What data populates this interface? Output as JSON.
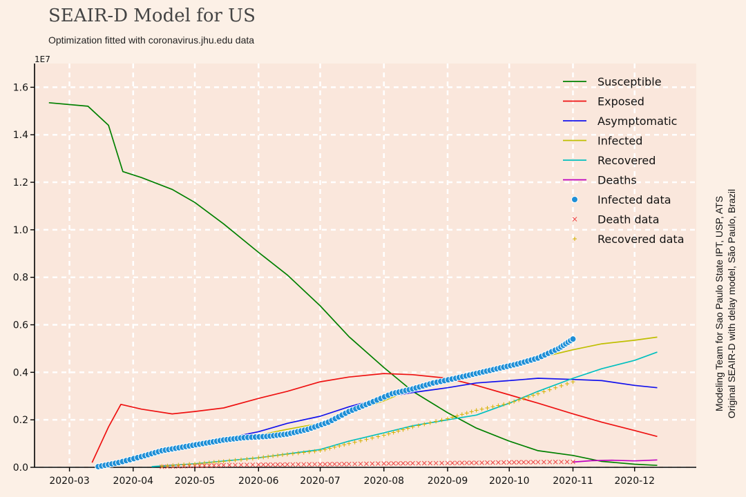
{
  "header": {
    "title": "SEAIR-D Model for US",
    "subtitle": "Optimization fitted with coronavirus.jhu.edu data"
  },
  "side_note": {
    "line1": "Modeling Team for Sao Paulo State IPT, USP, ATS",
    "line2": "Original SEAIR-D with delay model, São Paulo, Brazil"
  },
  "colors": {
    "background": "#fcf0e6",
    "plot_bg": "#fae7dc",
    "grid": "#ffffff",
    "susceptible": "#008000",
    "exposed": "#ee1111",
    "asymptomatic": "#1111ee",
    "infected": "#bfbf00",
    "recovered": "#00bfbf",
    "deaths": "#bf00bf",
    "infected_data": "#1f8fd6",
    "death_data": "#ee4444",
    "recovered_data": "#d4b000"
  },
  "chart_data": {
    "type": "line",
    "title": "SEAIR-D Model for US",
    "subtitle": "Optimization fitted with coronavirus.jhu.edu data",
    "xlabel": "",
    "ylabel": "",
    "y_scale_label": "1E7",
    "ylim": [
      0,
      1.7
    ],
    "xlim": [
      "2020-02-13",
      "2020-12-31"
    ],
    "grid": true,
    "legend_position": "top-right",
    "x_ticks": [
      "2020-03",
      "2020-04",
      "2020-05",
      "2020-06",
      "2020-07",
      "2020-08",
      "2020-09",
      "2020-10",
      "2020-11",
      "2020-12"
    ],
    "x_tick_dates": [
      "2020-03-01",
      "2020-04-01",
      "2020-05-01",
      "2020-06-01",
      "2020-07-01",
      "2020-08-01",
      "2020-09-01",
      "2020-10-01",
      "2020-11-01",
      "2020-12-01"
    ],
    "y_ticks": [
      "0.0",
      "0.2",
      "0.4",
      "0.6",
      "0.8",
      "1.0",
      "1.2",
      "1.4",
      "1.6"
    ],
    "y_tick_values": [
      0,
      0.2,
      0.4,
      0.6,
      0.8,
      1.0,
      1.2,
      1.4,
      1.6
    ],
    "series": [
      {
        "name": "Susceptible",
        "kind": "line",
        "color": "#008000",
        "x": [
          "2020-02-20",
          "2020-03-10",
          "2020-03-20",
          "2020-03-27",
          "2020-04-05",
          "2020-04-20",
          "2020-05-01",
          "2020-05-15",
          "2020-06-01",
          "2020-06-15",
          "2020-07-01",
          "2020-07-15",
          "2020-08-01",
          "2020-08-15",
          "2020-09-01",
          "2020-09-15",
          "2020-10-01",
          "2020-10-15",
          "2020-11-01",
          "2020-11-15",
          "2020-12-01",
          "2020-12-12"
        ],
        "values": [
          1.535,
          1.52,
          1.44,
          1.245,
          1.22,
          1.17,
          1.115,
          1.025,
          0.905,
          0.81,
          0.68,
          0.55,
          0.42,
          0.32,
          0.23,
          0.165,
          0.11,
          0.07,
          0.05,
          0.025,
          0.013,
          0.008
        ]
      },
      {
        "name": "Exposed",
        "kind": "line",
        "color": "#ee1111",
        "x": [
          "2020-03-12",
          "2020-03-20",
          "2020-03-26",
          "2020-04-05",
          "2020-04-20",
          "2020-05-01",
          "2020-05-15",
          "2020-06-01",
          "2020-06-15",
          "2020-07-01",
          "2020-07-15",
          "2020-08-01",
          "2020-08-15",
          "2020-09-01",
          "2020-09-15",
          "2020-10-01",
          "2020-10-15",
          "2020-11-01",
          "2020-11-15",
          "2020-12-01",
          "2020-12-12"
        ],
        "values": [
          0.02,
          0.17,
          0.265,
          0.245,
          0.225,
          0.235,
          0.25,
          0.29,
          0.32,
          0.36,
          0.38,
          0.395,
          0.39,
          0.375,
          0.345,
          0.305,
          0.27,
          0.225,
          0.19,
          0.155,
          0.13
        ]
      },
      {
        "name": "Asymptomatic",
        "kind": "line",
        "color": "#1111ee",
        "x": [
          "2020-03-15",
          "2020-04-01",
          "2020-04-15",
          "2020-05-01",
          "2020-05-15",
          "2020-06-01",
          "2020-06-15",
          "2020-07-01",
          "2020-07-15",
          "2020-08-01",
          "2020-08-15",
          "2020-09-01",
          "2020-09-15",
          "2020-10-01",
          "2020-10-15",
          "2020-11-01",
          "2020-11-15",
          "2020-12-01",
          "2020-12-12"
        ],
        "values": [
          0.005,
          0.03,
          0.06,
          0.095,
          0.12,
          0.15,
          0.185,
          0.215,
          0.255,
          0.295,
          0.315,
          0.335,
          0.355,
          0.365,
          0.375,
          0.37,
          0.365,
          0.345,
          0.335
        ]
      },
      {
        "name": "Infected",
        "kind": "line",
        "color": "#bfbf00",
        "x": [
          "2020-03-15",
          "2020-04-01",
          "2020-04-15",
          "2020-05-01",
          "2020-05-15",
          "2020-06-01",
          "2020-06-15",
          "2020-07-01",
          "2020-07-15",
          "2020-08-01",
          "2020-08-15",
          "2020-09-01",
          "2020-09-15",
          "2020-10-01",
          "2020-10-15",
          "2020-11-01",
          "2020-11-15",
          "2020-12-01",
          "2020-12-12"
        ],
        "values": [
          0.005,
          0.03,
          0.06,
          0.095,
          0.12,
          0.135,
          0.16,
          0.185,
          0.23,
          0.28,
          0.33,
          0.375,
          0.405,
          0.43,
          0.46,
          0.495,
          0.52,
          0.535,
          0.548
        ]
      },
      {
        "name": "Recovered",
        "kind": "line",
        "color": "#00bfbf",
        "x": [
          "2020-04-10",
          "2020-05-01",
          "2020-06-01",
          "2020-07-01",
          "2020-07-15",
          "2020-08-01",
          "2020-08-15",
          "2020-09-01",
          "2020-09-15",
          "2020-10-01",
          "2020-10-15",
          "2020-11-01",
          "2020-11-15",
          "2020-12-01",
          "2020-12-12"
        ],
        "values": [
          0.003,
          0.015,
          0.04,
          0.075,
          0.11,
          0.145,
          0.175,
          0.2,
          0.22,
          0.27,
          0.32,
          0.375,
          0.415,
          0.45,
          0.485
        ]
      },
      {
        "name": "Deaths",
        "kind": "line",
        "color": "#bf00bf",
        "x": [
          "2020-11-01",
          "2020-11-10",
          "2020-11-20",
          "2020-12-01",
          "2020-12-12"
        ],
        "values": [
          0.022,
          0.028,
          0.03,
          0.027,
          0.031
        ]
      },
      {
        "name": "Infected data",
        "kind": "points",
        "marker": "circle",
        "color": "#1f8fd6",
        "x": [
          "2020-03-15",
          "2020-03-25",
          "2020-04-05",
          "2020-04-15",
          "2020-04-25",
          "2020-05-05",
          "2020-05-15",
          "2020-05-25",
          "2020-06-05",
          "2020-06-15",
          "2020-06-25",
          "2020-07-05",
          "2020-07-15",
          "2020-07-25",
          "2020-08-05",
          "2020-08-15",
          "2020-08-25",
          "2020-09-05",
          "2020-09-15",
          "2020-09-25",
          "2020-10-05",
          "2020-10-15",
          "2020-10-25",
          "2020-11-01"
        ],
        "values": [
          0.003,
          0.02,
          0.045,
          0.07,
          0.085,
          0.1,
          0.115,
          0.125,
          0.13,
          0.14,
          0.16,
          0.19,
          0.235,
          0.27,
          0.31,
          0.33,
          0.355,
          0.375,
          0.395,
          0.415,
          0.435,
          0.46,
          0.5,
          0.54
        ]
      },
      {
        "name": "Death data",
        "kind": "points",
        "marker": "x",
        "color": "#ee4444",
        "x": [
          "2020-04-15",
          "2020-05-01",
          "2020-05-15",
          "2020-06-01",
          "2020-06-15",
          "2020-07-01",
          "2020-07-15",
          "2020-08-01",
          "2020-08-15",
          "2020-09-01",
          "2020-09-15",
          "2020-10-01",
          "2020-10-15",
          "2020-11-01"
        ],
        "values": [
          0.002,
          0.006,
          0.009,
          0.011,
          0.012,
          0.013,
          0.014,
          0.016,
          0.017,
          0.018,
          0.019,
          0.021,
          0.022,
          0.023
        ]
      },
      {
        "name": "Recovered data",
        "kind": "points",
        "marker": "plus",
        "color": "#d4b000",
        "x": [
          "2020-04-15",
          "2020-05-01",
          "2020-05-15",
          "2020-06-01",
          "2020-06-15",
          "2020-07-01",
          "2020-07-15",
          "2020-08-01",
          "2020-08-15",
          "2020-09-01",
          "2020-09-15",
          "2020-10-01",
          "2020-10-15",
          "2020-11-01"
        ],
        "values": [
          0.005,
          0.015,
          0.025,
          0.04,
          0.055,
          0.07,
          0.1,
          0.135,
          0.17,
          0.205,
          0.24,
          0.27,
          0.31,
          0.36
        ]
      }
    ]
  }
}
